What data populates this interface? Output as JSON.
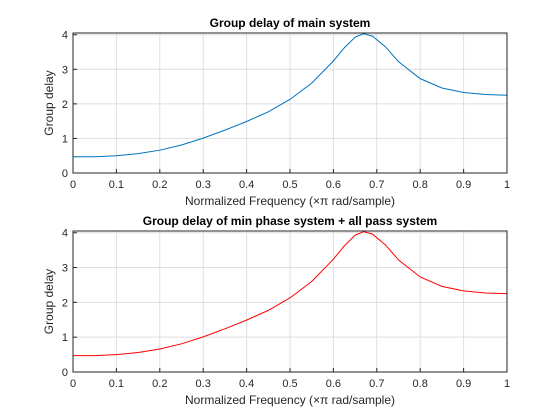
{
  "chart_data": [
    {
      "type": "line",
      "title": "Group delay of main system",
      "xlabel": "Normalized Frequency (×π rad/sample)",
      "ylabel": "Group delay",
      "xlim": [
        0,
        1
      ],
      "ylim": [
        0,
        4.05
      ],
      "xticks": [
        "0",
        "0.1",
        "0.2",
        "0.3",
        "0.4",
        "0.5",
        "0.6",
        "0.7",
        "0.8",
        "0.9",
        "1"
      ],
      "yticks": [
        "0",
        "1",
        "2",
        "3",
        "4"
      ],
      "grid": true,
      "series": [
        {
          "color": "#0072BD",
          "x": [
            0,
            0.05,
            0.1,
            0.15,
            0.2,
            0.25,
            0.3,
            0.35,
            0.4,
            0.45,
            0.5,
            0.55,
            0.6,
            0.625,
            0.65,
            0.67,
            0.69,
            0.72,
            0.75,
            0.8,
            0.85,
            0.9,
            0.95,
            1.0
          ],
          "y": [
            0.47,
            0.47,
            0.5,
            0.56,
            0.66,
            0.81,
            1.01,
            1.24,
            1.49,
            1.77,
            2.13,
            2.6,
            3.24,
            3.62,
            3.93,
            4.03,
            3.96,
            3.65,
            3.22,
            2.73,
            2.46,
            2.33,
            2.27,
            2.25
          ]
        }
      ]
    },
    {
      "type": "line",
      "title": "Group delay of min phase system + all pass system",
      "xlabel": "Normalized Frequency (×π rad/sample)",
      "ylabel": "Group delay",
      "xlim": [
        0,
        1
      ],
      "ylim": [
        0,
        4.05
      ],
      "xticks": [
        "0",
        "0.1",
        "0.2",
        "0.3",
        "0.4",
        "0.5",
        "0.6",
        "0.7",
        "0.8",
        "0.9",
        "1"
      ],
      "yticks": [
        "0",
        "1",
        "2",
        "3",
        "4"
      ],
      "grid": true,
      "series": [
        {
          "color": "#FF0000",
          "x": [
            0,
            0.05,
            0.1,
            0.15,
            0.2,
            0.25,
            0.3,
            0.35,
            0.4,
            0.45,
            0.5,
            0.55,
            0.6,
            0.625,
            0.65,
            0.67,
            0.69,
            0.72,
            0.75,
            0.8,
            0.85,
            0.9,
            0.95,
            1.0
          ],
          "y": [
            0.47,
            0.47,
            0.5,
            0.56,
            0.66,
            0.81,
            1.01,
            1.24,
            1.49,
            1.77,
            2.13,
            2.6,
            3.24,
            3.62,
            3.93,
            4.03,
            3.96,
            3.65,
            3.22,
            2.73,
            2.46,
            2.33,
            2.27,
            2.25
          ]
        }
      ]
    }
  ]
}
